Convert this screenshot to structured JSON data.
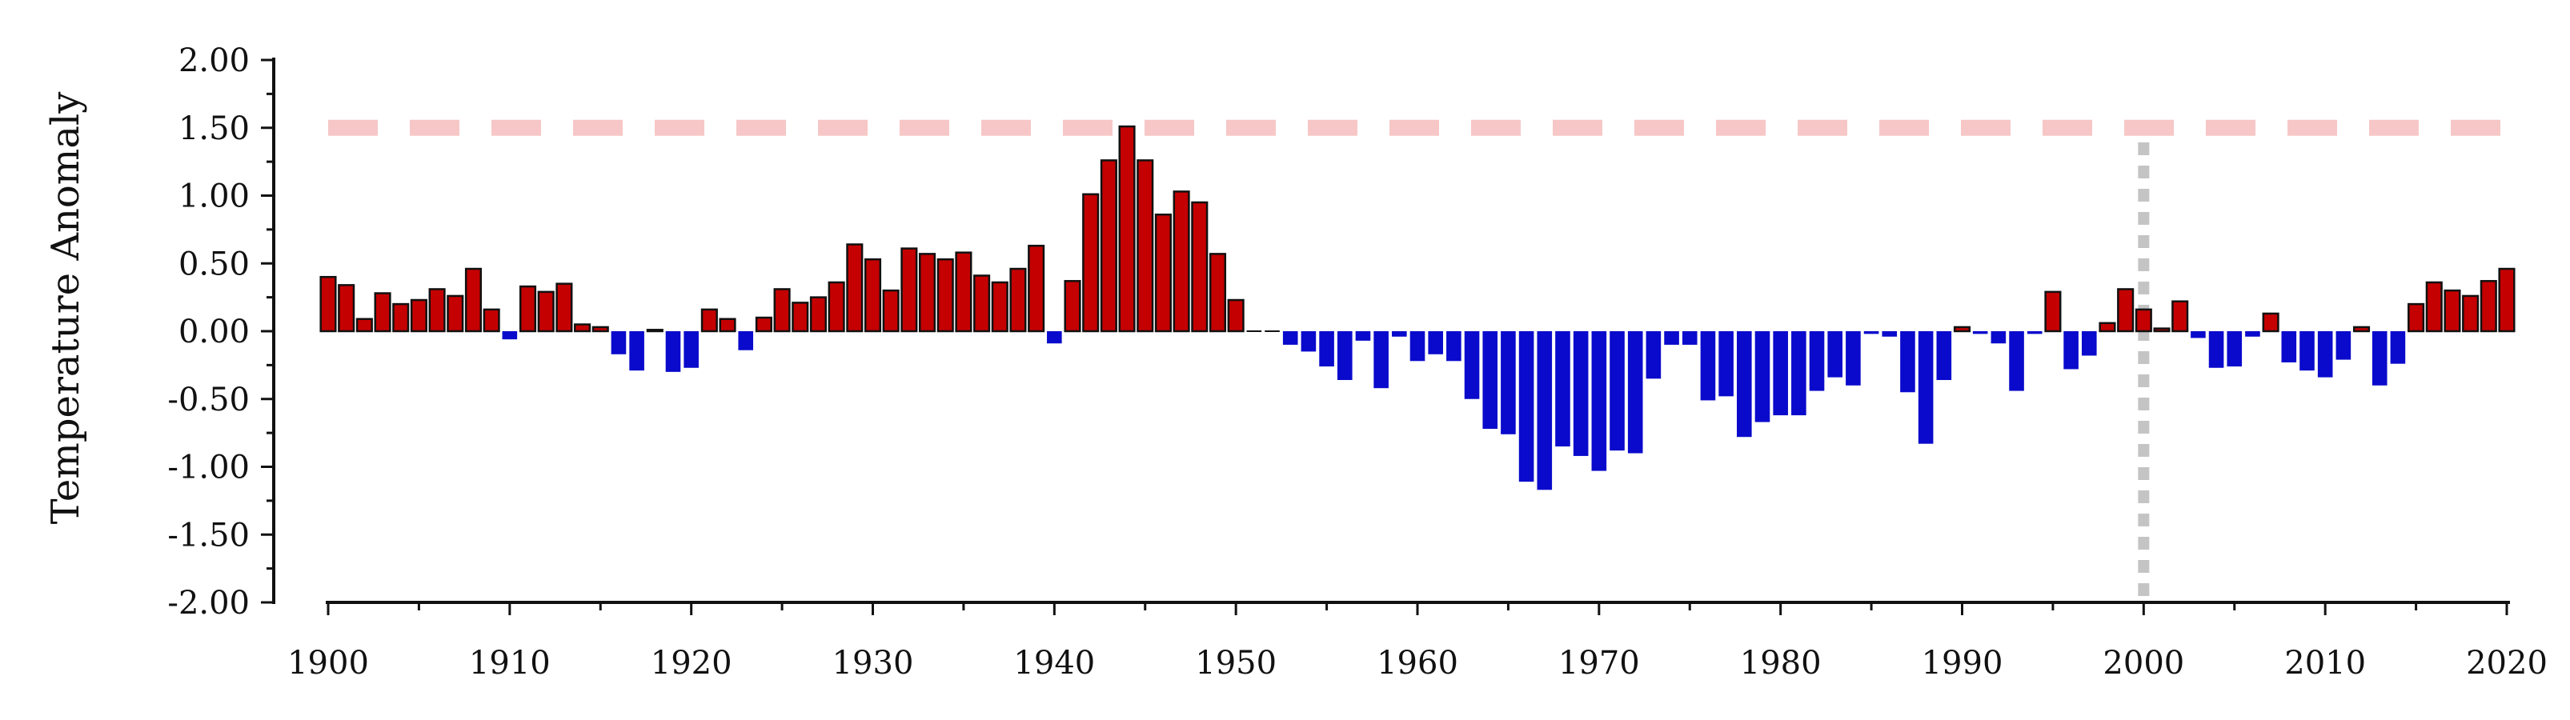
{
  "chart_data": {
    "type": "bar",
    "title": "",
    "xlabel": "",
    "ylabel": "Temperature Anomaly",
    "xlim": [
      1899,
      2021
    ],
    "ylim": [
      -2.0,
      2.0
    ],
    "x_ticks": [
      1900,
      1910,
      1920,
      1930,
      1940,
      1950,
      1960,
      1970,
      1980,
      1990,
      2000,
      2010,
      2020
    ],
    "y_ticks": [
      "2.00",
      "1.50",
      "1.00",
      "0.50",
      "0.00",
      "-0.50",
      "-1.00",
      "-1.50",
      "-2.00"
    ],
    "y_tick_values": [
      2.0,
      1.5,
      1.0,
      0.5,
      0.0,
      -0.5,
      -1.0,
      -1.5,
      -2.0
    ],
    "grid": false,
    "colors": {
      "positive": "#c40000",
      "negative": "#0a0acc",
      "bar_edge": "#111111",
      "threshold_line": "#f7c7c7",
      "marker_line": "#c4c4c4"
    },
    "reference_lines": [
      {
        "orientation": "horizontal",
        "value": 1.5,
        "style": "dashed",
        "color": "#f7c7c7"
      },
      {
        "orientation": "vertical",
        "value": 2000,
        "style": "dotted",
        "color": "#c4c4c4"
      }
    ],
    "years": [
      1900,
      1901,
      1902,
      1903,
      1904,
      1905,
      1906,
      1907,
      1908,
      1909,
      1910,
      1911,
      1912,
      1913,
      1914,
      1915,
      1916,
      1917,
      1918,
      1919,
      1920,
      1921,
      1922,
      1923,
      1924,
      1925,
      1926,
      1927,
      1928,
      1929,
      1930,
      1931,
      1932,
      1933,
      1934,
      1935,
      1936,
      1937,
      1938,
      1939,
      1940,
      1941,
      1942,
      1943,
      1944,
      1945,
      1946,
      1947,
      1948,
      1949,
      1950,
      1951,
      1952,
      1953,
      1954,
      1955,
      1956,
      1957,
      1958,
      1959,
      1960,
      1961,
      1962,
      1963,
      1964,
      1965,
      1966,
      1967,
      1968,
      1969,
      1970,
      1971,
      1972,
      1973,
      1974,
      1975,
      1976,
      1977,
      1978,
      1979,
      1980,
      1981,
      1982,
      1983,
      1984,
      1985,
      1986,
      1987,
      1988,
      1989,
      1990,
      1991,
      1992,
      1993,
      1994,
      1995,
      1996,
      1997,
      1998,
      1999,
      2000,
      2001,
      2002,
      2003,
      2004,
      2005,
      2006,
      2007,
      2008,
      2009,
      2010,
      2011,
      2012,
      2013,
      2014,
      2015,
      2016,
      2017,
      2018,
      2019,
      2020
    ],
    "values": [
      0.4,
      0.34,
      0.09,
      0.28,
      0.2,
      0.23,
      0.31,
      0.26,
      0.46,
      0.16,
      -0.06,
      0.33,
      0.29,
      0.35,
      0.05,
      0.03,
      -0.17,
      -0.29,
      0.01,
      -0.3,
      -0.27,
      0.16,
      0.09,
      -0.14,
      0.1,
      0.31,
      0.21,
      0.25,
      0.36,
      0.64,
      0.53,
      0.3,
      0.61,
      0.57,
      0.53,
      0.58,
      0.41,
      0.36,
      0.46,
      0.63,
      -0.09,
      0.37,
      1.01,
      1.26,
      1.51,
      1.26,
      0.86,
      1.03,
      0.95,
      0.57,
      0.23,
      0.0,
      0.0,
      -0.1,
      -0.15,
      -0.26,
      -0.36,
      -0.07,
      -0.42,
      -0.04,
      -0.22,
      -0.17,
      -0.22,
      -0.5,
      -0.72,
      -0.76,
      -1.11,
      -1.17,
      -0.85,
      -0.92,
      -1.03,
      -0.88,
      -0.9,
      -0.35,
      -0.1,
      -0.1,
      -0.51,
      -0.48,
      -0.78,
      -0.67,
      -0.62,
      -0.62,
      -0.44,
      -0.34,
      -0.4,
      -0.02,
      -0.04,
      -0.45,
      -0.83,
      -0.36,
      0.03,
      -0.02,
      -0.09,
      -0.44,
      -0.02,
      0.29,
      -0.28,
      -0.18,
      0.06,
      0.31,
      0.16,
      0.02,
      0.22,
      -0.05,
      -0.27,
      -0.26,
      -0.04,
      0.13,
      -0.23,
      -0.29,
      -0.34,
      -0.21,
      0.03,
      -0.4,
      -0.24,
      0.2,
      0.36,
      0.3,
      0.26,
      0.37,
      0.46
    ]
  }
}
